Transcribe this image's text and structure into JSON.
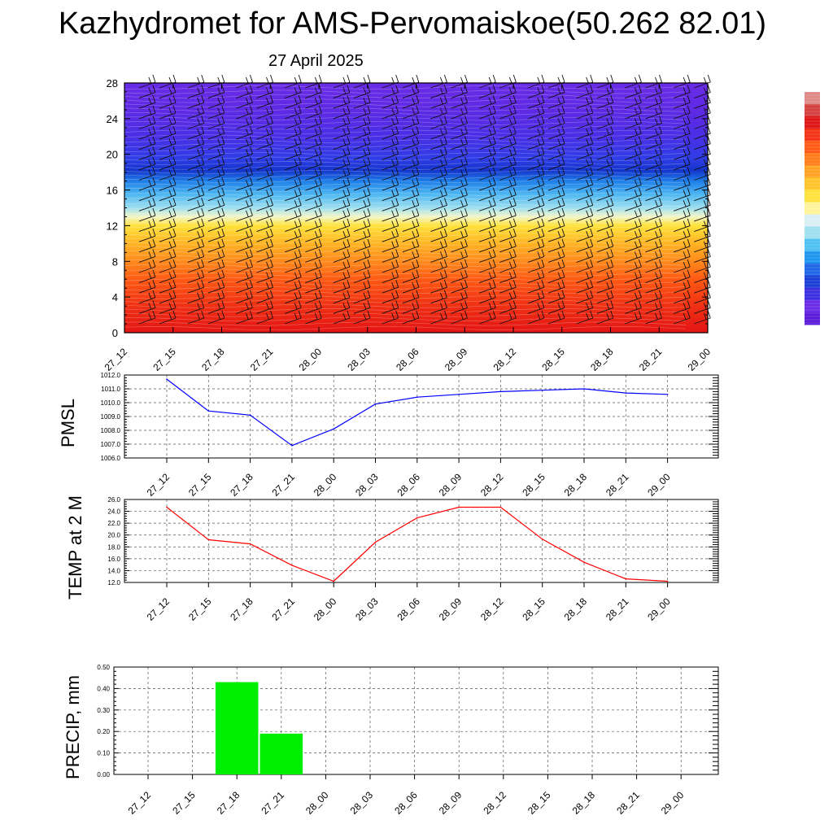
{
  "title": "Kazhydromet for AMS-Pervomaiskoe(50.262 82.01)",
  "subtitle": "27 April 2025",
  "chart_data": [
    {
      "type": "heatmap",
      "description_text": "",
      "x_categories": [
        "27_12",
        "27_15",
        "27_18",
        "27_21",
        "28_00",
        "28_03",
        "28_06",
        "28_09",
        "28_12",
        "28_15",
        "28_18",
        "28_21",
        "29_00"
      ],
      "y_ticks": [
        "0",
        "4",
        "8",
        "12",
        "16",
        "20",
        "24",
        "28"
      ],
      "ylim": [
        0,
        28
      ],
      "colorbar": [
        "#5b1bd8",
        "#6a2ce6",
        "#3b2fe0",
        "#1b3ed6",
        "#1f66e8",
        "#1e96f0",
        "#4fc1f2",
        "#9edff0",
        "#d8f0f4",
        "#fff49a",
        "#ffe23a",
        "#ffc42a",
        "#ffa222",
        "#ff7d1a",
        "#ff5a14",
        "#f33314",
        "#e01515",
        "#d44040",
        "#e08a8a"
      ],
      "bands": [
        {
          "y": 0,
          "color": "#e41515"
        },
        {
          "y": 3,
          "color": "#f03014"
        },
        {
          "y": 6,
          "color": "#ff5a14"
        },
        {
          "y": 8,
          "color": "#ff8a1c"
        },
        {
          "y": 10,
          "color": "#ffb424"
        },
        {
          "y": 12,
          "color": "#ffe23a"
        },
        {
          "y": 13,
          "color": "#f4f6c8"
        },
        {
          "y": 14,
          "color": "#9edff0"
        },
        {
          "y": 15.5,
          "color": "#4fb8f2"
        },
        {
          "y": 17,
          "color": "#1e7ee8"
        },
        {
          "y": 18.2,
          "color": "#1434cc"
        },
        {
          "y": 19.5,
          "color": "#2f3de6"
        },
        {
          "y": 22,
          "color": "#4a2fe6"
        },
        {
          "y": 25,
          "color": "#5f2ae4"
        },
        {
          "y": 28,
          "color": "#6a2ce6"
        }
      ]
    },
    {
      "type": "line",
      "ylabel": "PMSL",
      "categories": [
        "27_12",
        "27_15",
        "27_18",
        "27_21",
        "28_00",
        "28_03",
        "28_06",
        "28_09",
        "28_12",
        "28_15",
        "28_18",
        "28_21",
        "29_00"
      ],
      "yticks": [
        "1006.0",
        "1007.0",
        "1008.0",
        "1009.0",
        "1010.0",
        "1011.0",
        "1012.0"
      ],
      "ylim": [
        1006,
        1012
      ],
      "values": [
        1011.7,
        1009.4,
        1009.1,
        1006.9,
        1008.1,
        1009.9,
        1010.4,
        1010.6,
        1010.8,
        1010.9,
        1011.0,
        1010.7,
        1010.6
      ],
      "color": "#0000ff",
      "grid": true
    },
    {
      "type": "line",
      "ylabel": "TEMP at 2 M",
      "categories": [
        "27_12",
        "27_15",
        "27_18",
        "27_21",
        "28_00",
        "28_03",
        "28_06",
        "28_09",
        "28_12",
        "28_15",
        "28_18",
        "28_21",
        "29_00"
      ],
      "yticks": [
        "12.0",
        "14.0",
        "16.0",
        "18.0",
        "20.0",
        "22.0",
        "24.0",
        "26.0"
      ],
      "ylim": [
        12,
        26
      ],
      "values": [
        24.7,
        19.2,
        18.5,
        14.9,
        12.2,
        18.8,
        22.9,
        24.7,
        24.7,
        19.3,
        15.4,
        12.6,
        12.2
      ],
      "color": "#ff0000",
      "grid": true
    },
    {
      "type": "bar",
      "ylabel": "PRECIP, mm",
      "categories": [
        "27_12",
        "27_15",
        "27_18",
        "27_21",
        "28_00",
        "28_03",
        "28_06",
        "28_09",
        "28_12",
        "28_15",
        "28_18",
        "28_21",
        "29_00"
      ],
      "yticks": [
        "0.00",
        "0.10",
        "0.20",
        "0.30",
        "0.40",
        "0.50"
      ],
      "ylim": [
        0,
        0.5
      ],
      "values": [
        0,
        0,
        0.43,
        0.19,
        0,
        0,
        0,
        0,
        0,
        0,
        0,
        0,
        0
      ],
      "color": "#00ee00",
      "grid": true
    }
  ]
}
